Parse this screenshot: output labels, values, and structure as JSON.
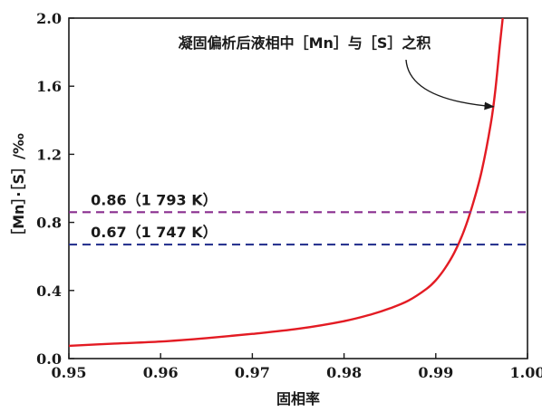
{
  "chart_data": {
    "type": "line",
    "title": "",
    "xlabel": "固相率",
    "ylabel": "［Mn］·［S］/‰",
    "xlim": [
      0.95,
      1.0
    ],
    "ylim": [
      0.0,
      2.0
    ],
    "x_ticks": [
      "0.95",
      "0.96",
      "0.97",
      "0.98",
      "0.99",
      "1.00"
    ],
    "y_ticks": [
      "0.0",
      "0.4",
      "0.8",
      "1.2",
      "1.6",
      "2.0"
    ],
    "grid": false,
    "series": [
      {
        "name": "凝固偏析后液相中［Mn］与［S］之积",
        "color": "#e31b23",
        "style": "solid",
        "x": [
          0.95,
          0.955,
          0.96,
          0.965,
          0.97,
          0.975,
          0.98,
          0.983,
          0.985,
          0.987,
          0.989,
          0.99,
          0.991,
          0.992,
          0.993,
          0.994,
          0.995,
          0.996,
          0.9965,
          0.997,
          0.9973
        ],
        "y": [
          0.075,
          0.088,
          0.1,
          0.12,
          0.145,
          0.175,
          0.22,
          0.26,
          0.295,
          0.34,
          0.41,
          0.46,
          0.53,
          0.62,
          0.74,
          0.9,
          1.1,
          1.38,
          1.58,
          1.85,
          2.0
        ]
      },
      {
        "name": "0.86（1 793 K）",
        "color": "#8a2f8f",
        "style": "dashed",
        "x": [
          0.95,
          1.0
        ],
        "y": [
          0.86,
          0.86
        ]
      },
      {
        "name": "0.67（1 747 K）",
        "color": "#2a3590",
        "style": "dashed",
        "x": [
          0.95,
          1.0
        ],
        "y": [
          0.67,
          0.67
        ]
      }
    ],
    "annotations": [
      {
        "text": "凝固偏析后液相中［Mn］与［S］之积",
        "arrow_to": [
          0.9963,
          1.48
        ]
      },
      {
        "text": "0.86（1 793 K）",
        "at": [
          0.951,
          0.86
        ]
      },
      {
        "text": "0.67（1 747 K）",
        "at": [
          0.951,
          0.67
        ]
      }
    ]
  }
}
